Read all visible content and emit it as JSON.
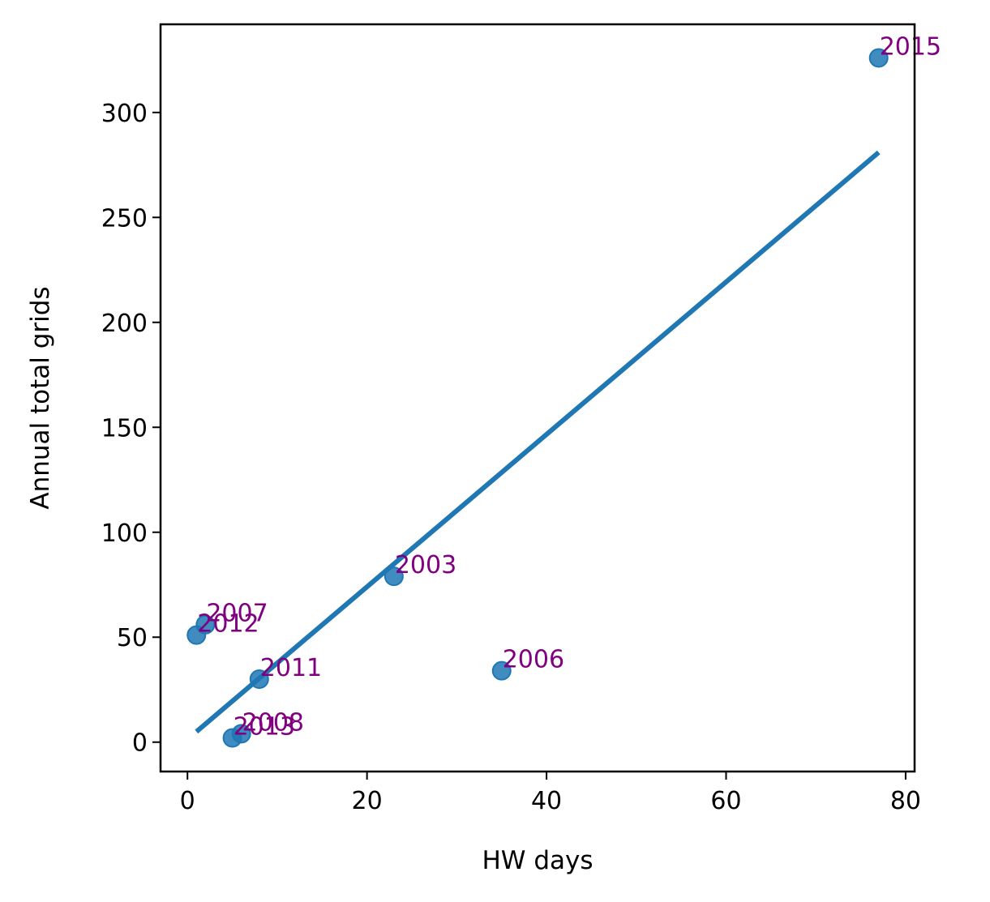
{
  "chart_data": {
    "type": "scatter",
    "xlabel": "HW days",
    "ylabel": "Annual total grids",
    "xlim": [
      -3,
      81
    ],
    "ylim": [
      -14,
      342
    ],
    "xticks": [
      0,
      20,
      40,
      60,
      80
    ],
    "yticks": [
      0,
      50,
      100,
      150,
      200,
      250,
      300
    ],
    "grid": false,
    "points": [
      {
        "label": "2003",
        "x": 23,
        "y": 79
      },
      {
        "label": "2006",
        "x": 35,
        "y": 34
      },
      {
        "label": "2007",
        "x": 2,
        "y": 56
      },
      {
        "label": "2008",
        "x": 6,
        "y": 4
      },
      {
        "label": "2011",
        "x": 8,
        "y": 30
      },
      {
        "label": "2012",
        "x": 1,
        "y": 51
      },
      {
        "label": "2013",
        "x": 5,
        "y": 2
      },
      {
        "label": "2015",
        "x": 77,
        "y": 326
      }
    ],
    "fit_line": {
      "x": [
        1,
        77
      ],
      "y": [
        5,
        281
      ]
    },
    "colors": {
      "points": "#1f77b4",
      "line": "#1f77b4",
      "labels": "#800080"
    }
  }
}
